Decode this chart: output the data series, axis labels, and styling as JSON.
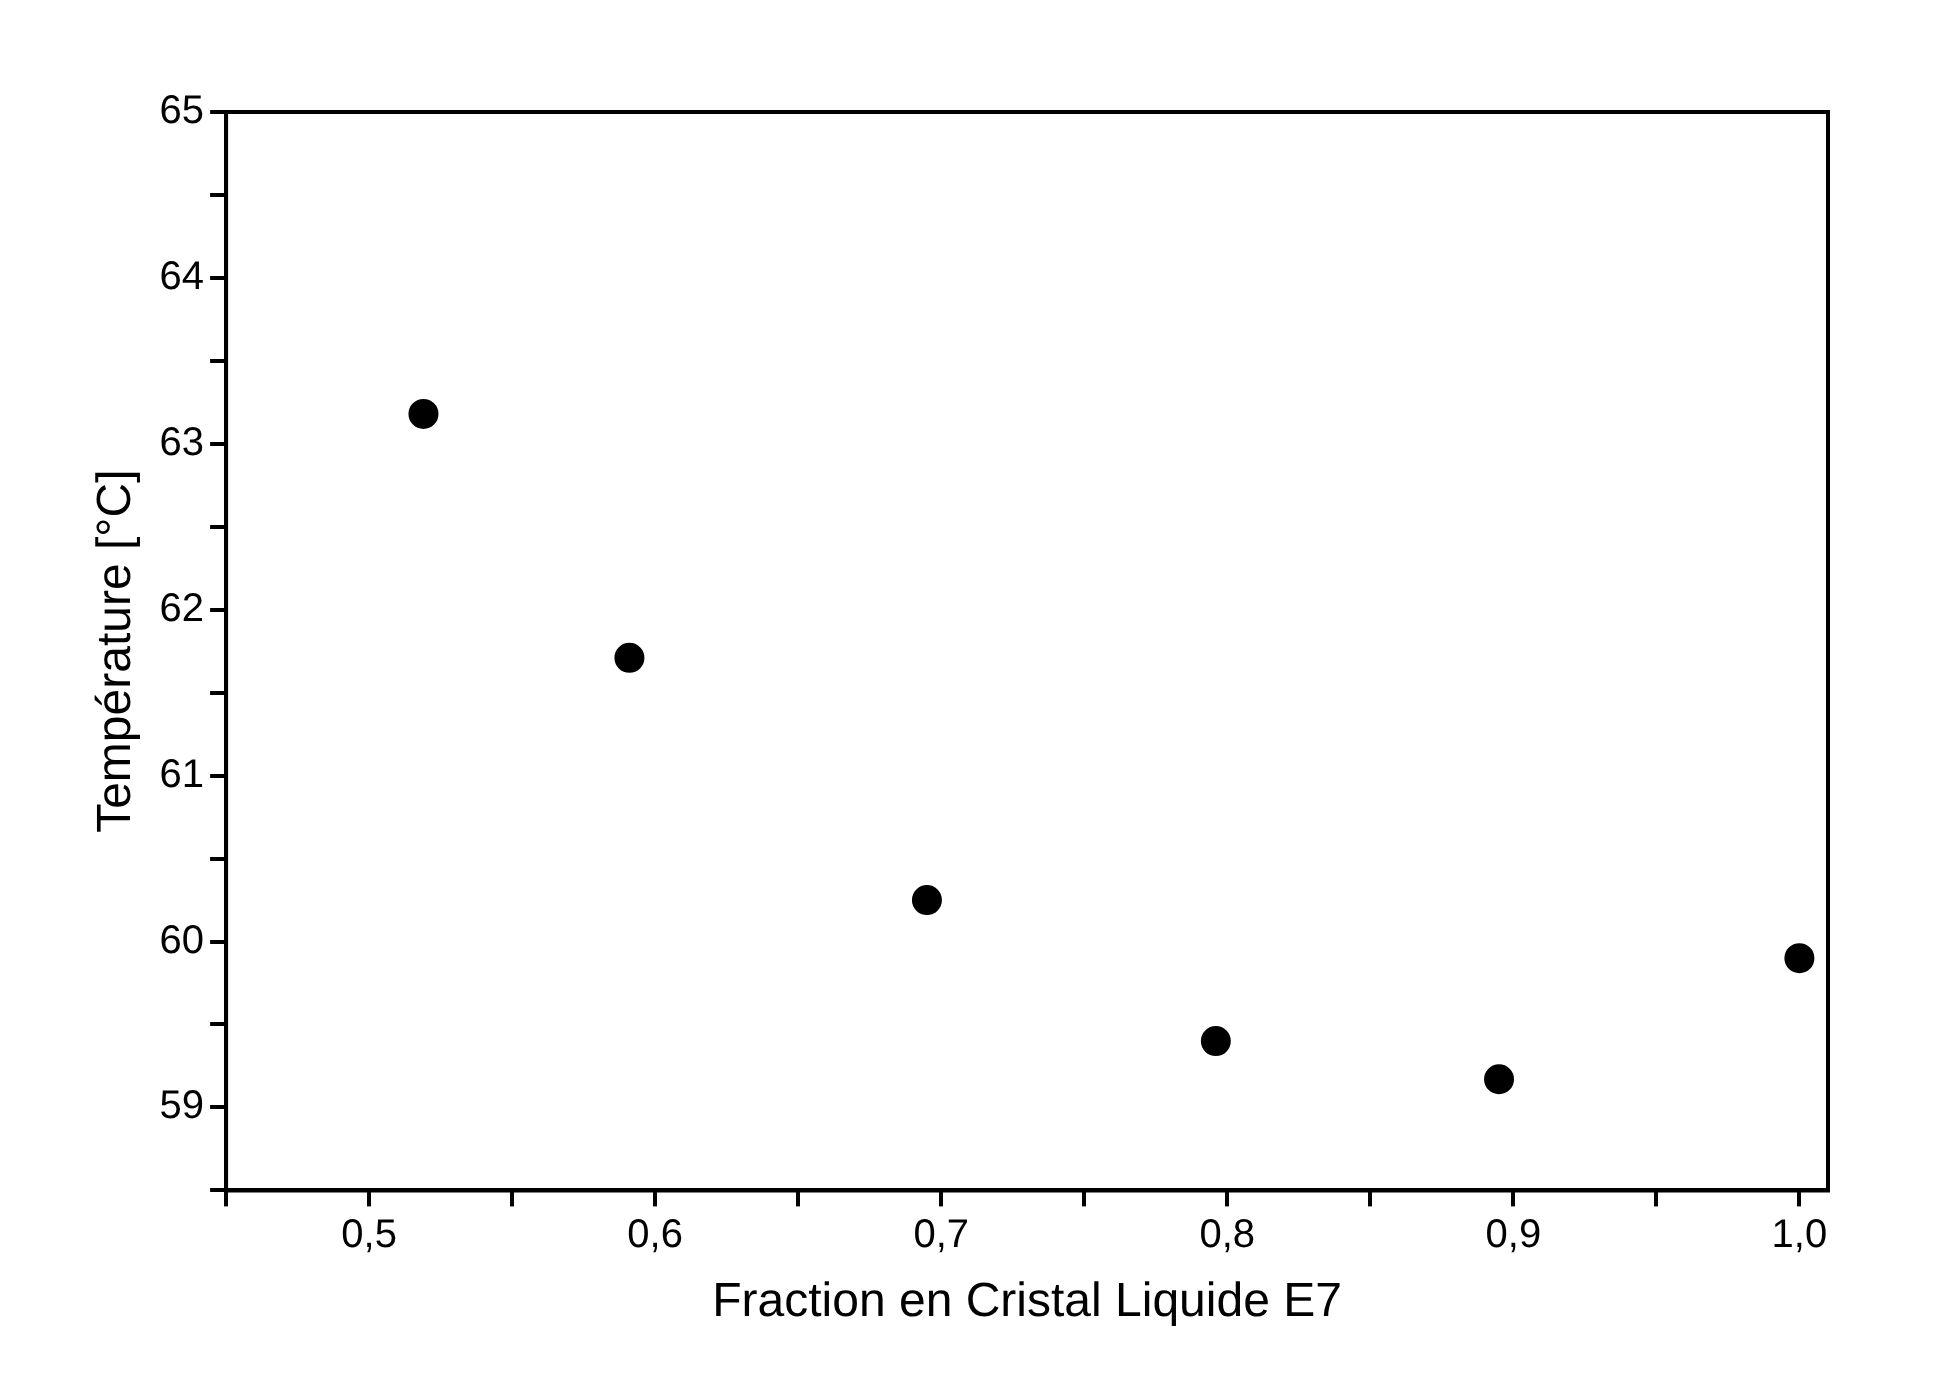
{
  "chart_data": {
    "type": "scatter",
    "xlabel": "Fraction en Cristal Liquide E7",
    "ylabel": "Température [°C]",
    "x": [
      0.519,
      0.591,
      0.695,
      0.796,
      0.895,
      1.0
    ],
    "series": [
      {
        "color": "#000000",
        "values": [
          63.18,
          61.71,
          60.25,
          59.4,
          59.17,
          59.9
        ]
      }
    ],
    "xlim": [
      0.45,
      1.01
    ],
    "xticks": [
      {
        "value": 0.45,
        "label": null
      },
      {
        "value": 0.5,
        "label": "0,5"
      },
      {
        "value": 0.55,
        "label": null
      },
      {
        "value": 0.6,
        "label": "0,6"
      },
      {
        "value": 0.65,
        "label": null
      },
      {
        "value": 0.7,
        "label": "0,7"
      },
      {
        "value": 0.75,
        "label": null
      },
      {
        "value": 0.8,
        "label": "0,8"
      },
      {
        "value": 0.85,
        "label": null
      },
      {
        "value": 0.9,
        "label": "0,9"
      },
      {
        "value": 0.95,
        "label": null
      },
      {
        "value": 1.0,
        "label": "1,0"
      }
    ],
    "ylim": [
      58.5,
      65
    ],
    "yticks": [
      {
        "value": 58.5,
        "label": null
      },
      59,
      {
        "value": 59.5,
        "label": null
      },
      60,
      {
        "value": 60.5,
        "label": null
      },
      61,
      {
        "value": 61.5,
        "label": null
      },
      62,
      {
        "value": 62.5,
        "label": null
      },
      63,
      {
        "value": 63.5,
        "label": null
      },
      64,
      {
        "value": 64.5,
        "label": null
      },
      65
    ],
    "marker": "circle",
    "grid": false,
    "legend": false
  }
}
